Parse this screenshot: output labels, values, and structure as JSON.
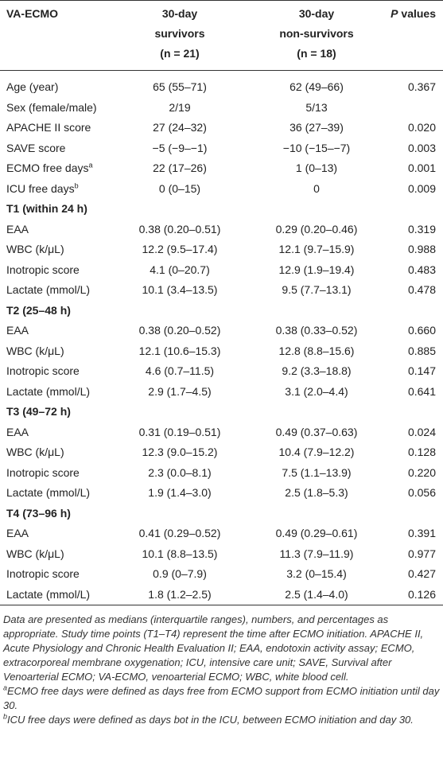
{
  "header": {
    "col0": "VA-ECMO",
    "col1": [
      "30-day",
      "survivors",
      "(n = 21)"
    ],
    "col2": [
      "30-day",
      "non-survivors",
      "(n = 18)"
    ],
    "col3": {
      "italic": "P",
      "rest": "values"
    }
  },
  "rows": [
    {
      "label": "Age (year)",
      "cells": [
        "65 (55–71)",
        "62 (49–66)",
        "0.367"
      ]
    },
    {
      "label": "Sex (female/male)",
      "cells": [
        "2/19",
        "5/13"
      ]
    },
    {
      "label": "APACHE II score",
      "cells": [
        "27 (24–32)",
        "36 (27–39)",
        "0.020"
      ]
    },
    {
      "label": "SAVE score",
      "cells": [
        "−5 (−9–−1)",
        "−10 (−15–−7)",
        "0.003"
      ]
    },
    {
      "label": "ECMO free days",
      "sup": "a",
      "cells": [
        "22 (17–26)",
        "1 (0–13)",
        "0.001"
      ]
    },
    {
      "label": "ICU free days",
      "sup": "b",
      "cells": [
        "0 (0–15)",
        "0",
        "0.009"
      ]
    },
    {
      "section": "T1 (within 24 h)"
    },
    {
      "label": "EAA",
      "cells": [
        "0.38 (0.20–0.51)",
        "0.29 (0.20–0.46)",
        "0.319"
      ]
    },
    {
      "label": "WBC (k/μL)",
      "cells": [
        "12.2 (9.5–17.4)",
        "12.1 (9.7–15.9)",
        "0.988"
      ]
    },
    {
      "label": "Inotropic score",
      "cells": [
        "4.1 (0–20.7)",
        "12.9 (1.9–19.4)",
        "0.483"
      ]
    },
    {
      "label": "Lactate (mmol/L)",
      "cells": [
        "10.1 (3.4–13.5)",
        "9.5 (7.7–13.1)",
        "0.478"
      ]
    },
    {
      "section": "T2 (25–48 h)"
    },
    {
      "label": "EAA",
      "cells": [
        "0.38 (0.20–0.52)",
        "0.38 (0.33–0.52)",
        "0.660"
      ]
    },
    {
      "label": "WBC (k/μL)",
      "cells": [
        "12.1 (10.6–15.3)",
        "12.8 (8.8–15.6)",
        "0.885"
      ]
    },
    {
      "label": "Inotropic score",
      "cells": [
        "4.6 (0.7–11.5)",
        "9.2 (3.3–18.8)",
        "0.147"
      ]
    },
    {
      "label": "Lactate (mmol/L)",
      "cells": [
        "2.9 (1.7–4.5)",
        "3.1 (2.0–4.4)",
        "0.641"
      ]
    },
    {
      "section": "T3 (49–72 h)"
    },
    {
      "label": "EAA",
      "cells": [
        "0.31 (0.19–0.51)",
        "0.49 (0.37–0.63)",
        "0.024"
      ]
    },
    {
      "label": "WBC (k/μL)",
      "cells": [
        "12.3 (9.0–15.2)",
        "10.4 (7.9–12.2)",
        "0.128"
      ]
    },
    {
      "label": "Inotropic score",
      "cells": [
        "2.3 (0.0–8.1)",
        "7.5 (1.1–13.9)",
        "0.220"
      ]
    },
    {
      "label": "Lactate (mmol/L)",
      "cells": [
        "1.9 (1.4–3.0)",
        "2.5 (1.8–5.3)",
        "0.056"
      ]
    },
    {
      "section": "T4 (73–96 h)"
    },
    {
      "label": "EAA",
      "cells": [
        "0.41 (0.29–0.52)",
        "0.49 (0.29–0.61)",
        "0.391"
      ]
    },
    {
      "label": "WBC (k/μL)",
      "cells": [
        "10.1 (8.8–13.5)",
        "11.3 (7.9–11.9)",
        "0.977"
      ]
    },
    {
      "label": "Inotropic score",
      "cells": [
        "0.9 (0–7.9)",
        "3.2 (0–15.4)",
        "0.427"
      ]
    },
    {
      "label": "Lactate (mmol/L)",
      "cells": [
        "1.8 (1.2–2.5)",
        "2.5 (1.4–4.0)",
        "0.126"
      ]
    }
  ],
  "footnotes": {
    "main": "Data are presented as medians (interquartile ranges), numbers, and percentages as appropriate. Study time points (T1–T4) represent the time after ECMO initiation. APACHE II, Acute Physiology and Chronic Health Evaluation II; EAA, endotoxin activity assay; ECMO, extracorporeal membrane oxygenation; ICU, intensive care unit; SAVE, Survival after Venoarterial ECMO; VA-ECMO, venoarterial ECMO; WBC, white blood cell.",
    "notes": [
      {
        "mark": "a",
        "text": "ECMO free days were defined as days free from ECMO support from ECMO initiation until day 30."
      },
      {
        "mark": "b",
        "text": "ICU free days were defined as days bot in the ICU, between ECMO initiation and day 30."
      }
    ]
  }
}
